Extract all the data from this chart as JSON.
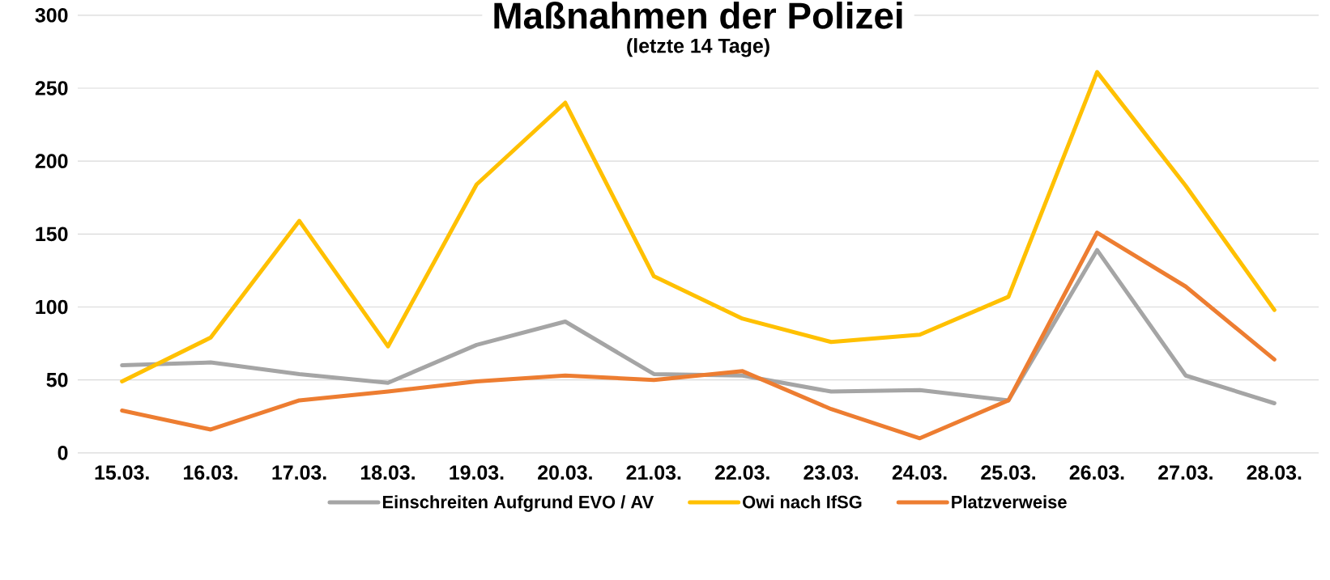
{
  "chart_data": {
    "type": "line",
    "title": "Maßnahmen der Polizei",
    "subtitle": "(letzte 14 Tage)",
    "categories": [
      "15.03.",
      "16.03.",
      "17.03.",
      "18.03.",
      "19.03.",
      "20.03.",
      "21.03.",
      "22.03.",
      "23.03.",
      "24.03.",
      "25.03.",
      "26.03.",
      "27.03.",
      "28.03."
    ],
    "series": [
      {
        "name": "Einschreiten Aufgrund EVO / AV",
        "color": "#a5a5a5",
        "values": [
          60,
          62,
          54,
          48,
          74,
          90,
          54,
          53,
          42,
          43,
          36,
          139,
          53,
          34
        ]
      },
      {
        "name": "Owi nach IfSG",
        "color": "#ffc000",
        "values": [
          49,
          79,
          159,
          73,
          184,
          240,
          121,
          92,
          76,
          81,
          107,
          261,
          183,
          98
        ]
      },
      {
        "name": "Platzverweise",
        "color": "#ed7d31",
        "values": [
          29,
          16,
          36,
          42,
          49,
          53,
          50,
          56,
          30,
          10,
          36,
          151,
          114,
          64
        ]
      }
    ],
    "ylim": [
      0,
      300
    ],
    "yticks": [
      0,
      50,
      100,
      150,
      200,
      250,
      300
    ],
    "grid": "y",
    "legend": "bottom",
    "marker": "none",
    "line_style": "solid"
  }
}
